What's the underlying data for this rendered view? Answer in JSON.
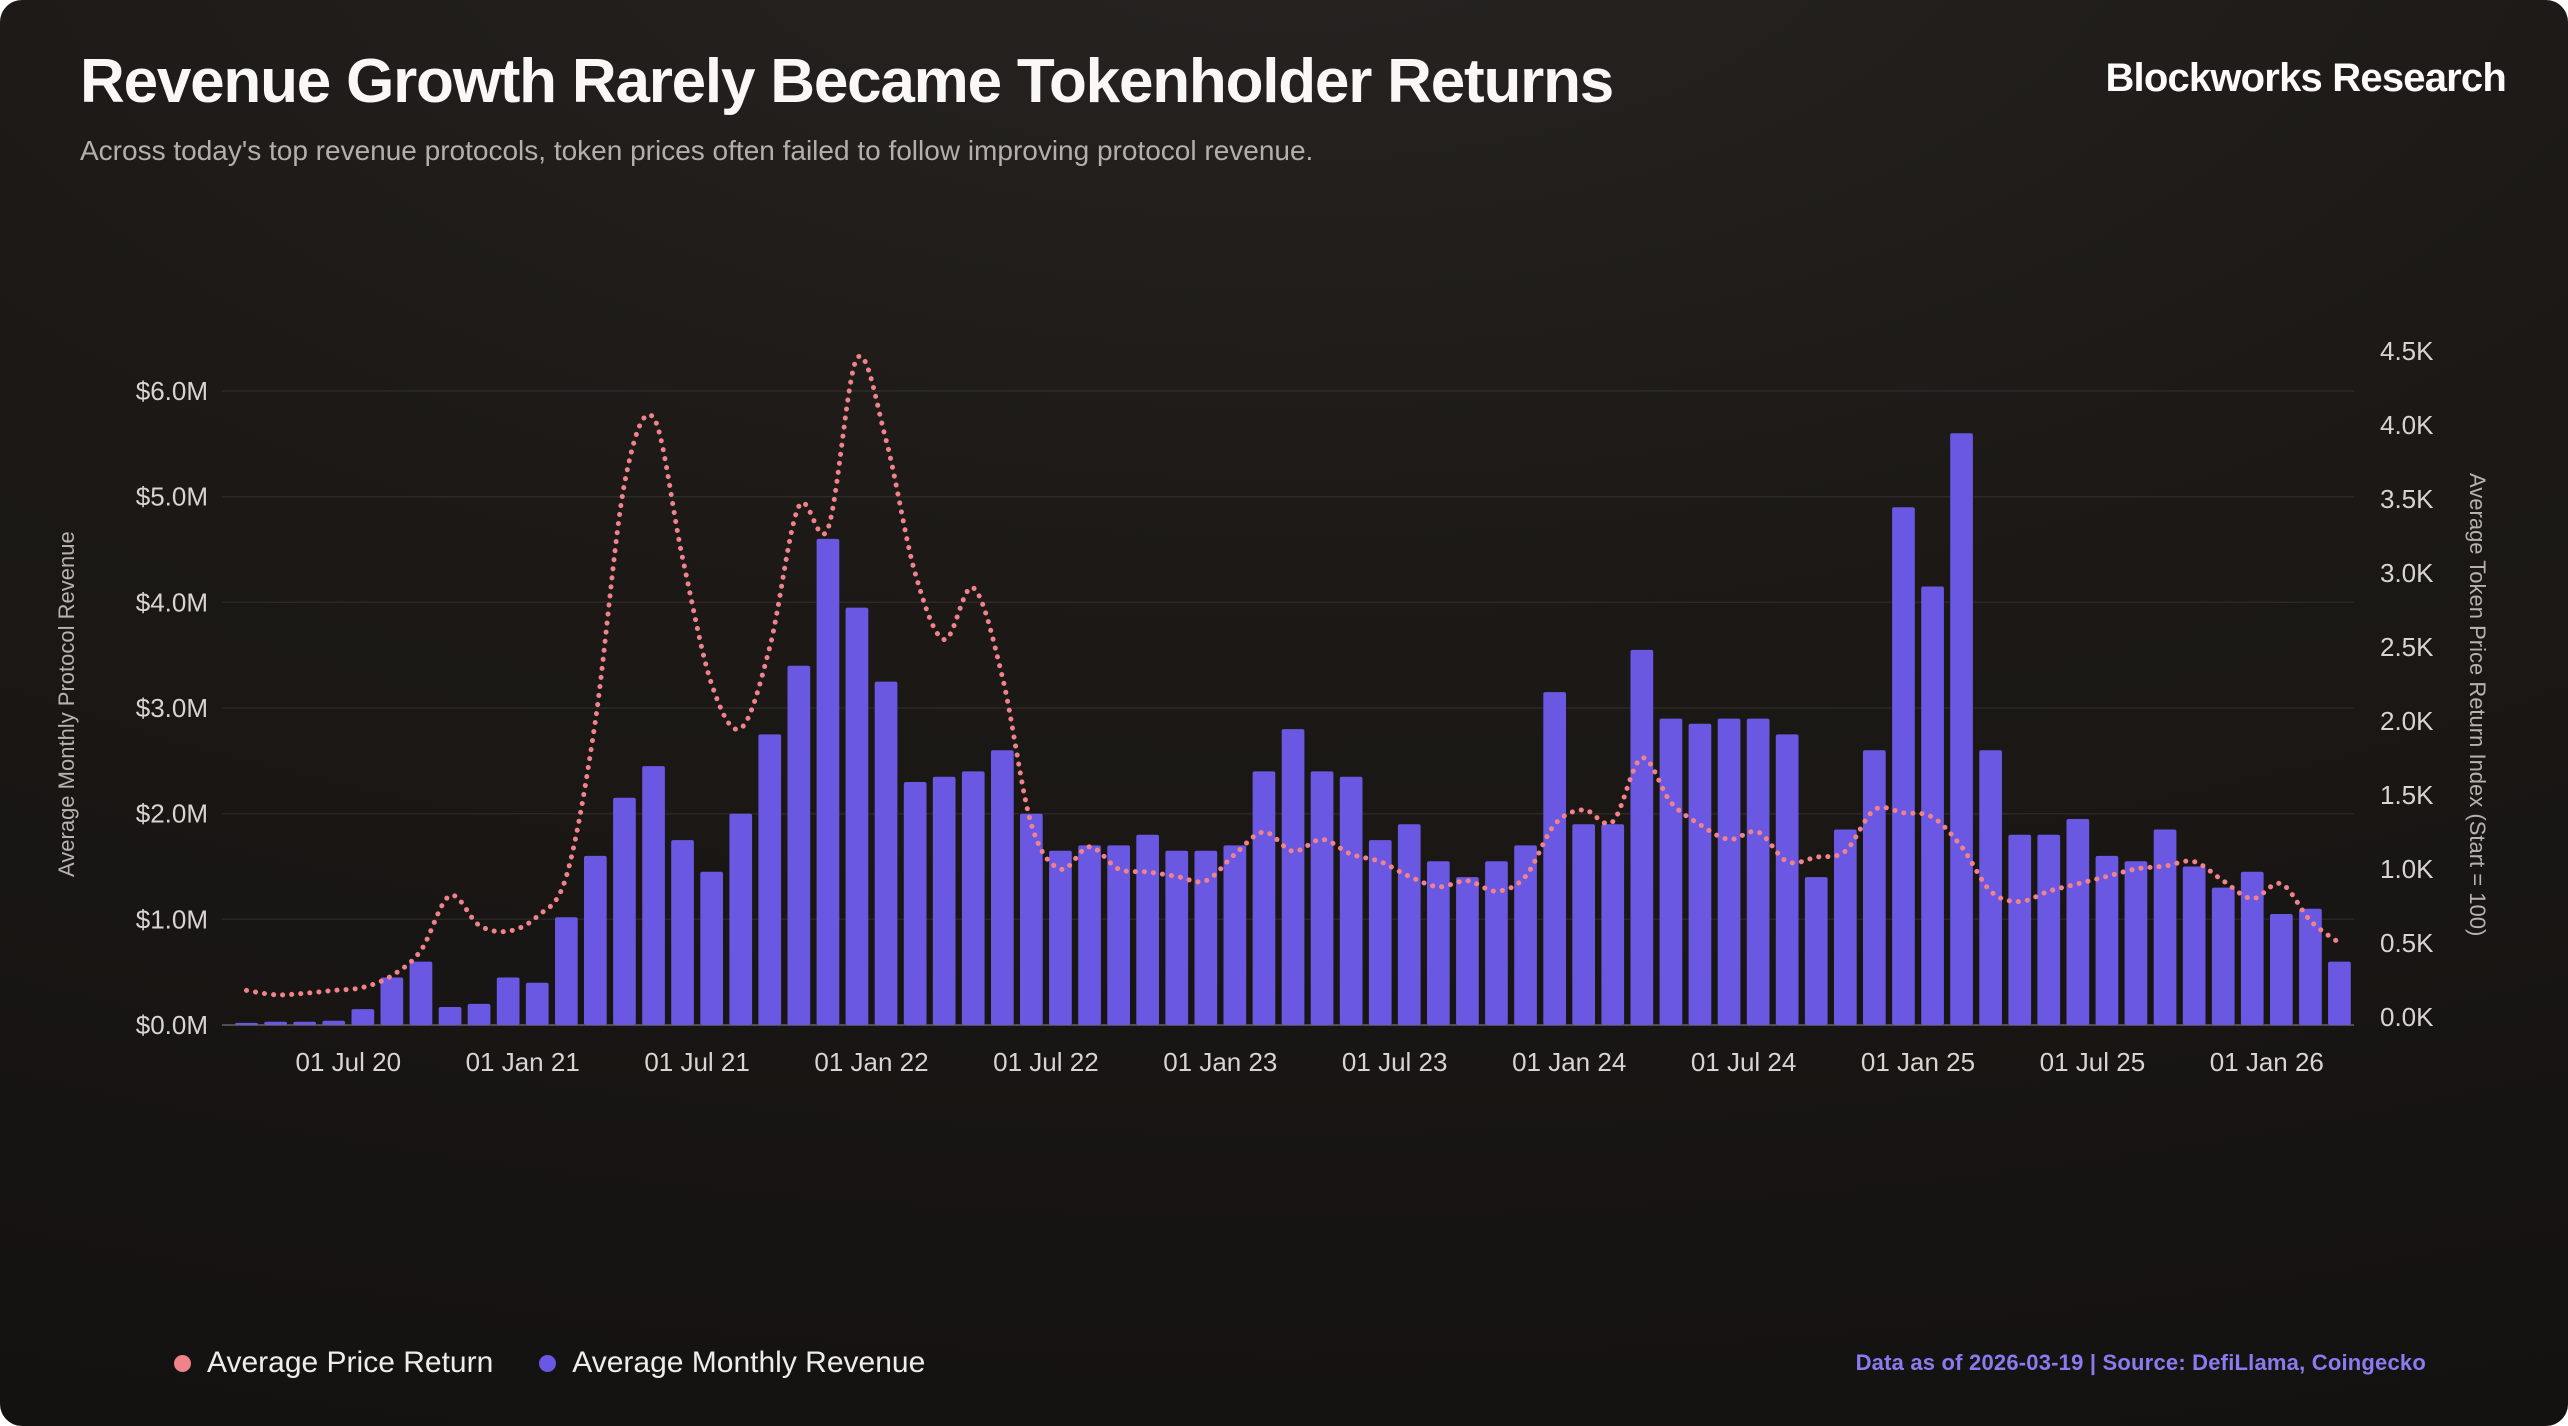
{
  "header": {
    "title": "Revenue Growth Rarely Became Tokenholder Returns",
    "subtitle": "Across today's top revenue protocols, token prices often failed to follow improving protocol revenue.",
    "logo": "Blockworks Research"
  },
  "footer": {
    "source": "Data as of 2026-03-19 | Source: DefiLlama, Coingecko"
  },
  "legend": [
    {
      "label": "Average Price Return",
      "color": "#f0838a"
    },
    {
      "label": "Average Monthly Revenue",
      "color": "#6a58e3"
    }
  ],
  "colors": {
    "background": "#1b1816",
    "bar": "#6a58e3",
    "line": "#f0838a",
    "source_text": "#8b7bf1"
  },
  "chart_data": {
    "type": "bar+line-dual-axis",
    "title": "Revenue Growth Rarely Became Tokenholder Returns",
    "grid": true,
    "legend_position": "bottom-left",
    "left_axis": {
      "title": "Average Monthly Protocol Revenue",
      "unit": "$M",
      "max": 6,
      "ticks": [
        {
          "value": 0,
          "label": "$0.0M"
        },
        {
          "value": 1,
          "label": "$1.0M"
        },
        {
          "value": 2,
          "label": "$2.0M"
        },
        {
          "value": 3,
          "label": "$3.0M"
        },
        {
          "value": 4,
          "label": "$4.0M"
        },
        {
          "value": 5,
          "label": "$5.0M"
        },
        {
          "value": 6,
          "label": "$6.0M"
        }
      ]
    },
    "right_axis": {
      "title": "Average Token Price Return Index (Start = 100)",
      "unit": "K",
      "max": 4.5,
      "ticks": [
        {
          "value": 0.0,
          "label": "0.0K"
        },
        {
          "value": 0.5,
          "label": "0.5K"
        },
        {
          "value": 1.0,
          "label": "1.0K"
        },
        {
          "value": 1.5,
          "label": "1.5K"
        },
        {
          "value": 2.0,
          "label": "2.0K"
        },
        {
          "value": 2.5,
          "label": "2.5K"
        },
        {
          "value": 3.0,
          "label": "3.0K"
        },
        {
          "value": 3.5,
          "label": "3.5K"
        },
        {
          "value": 4.0,
          "label": "4.0K"
        },
        {
          "value": 4.5,
          "label": "4.5K"
        }
      ]
    },
    "x": [
      "2020-03",
      "2020-04",
      "2020-05",
      "2020-06",
      "2020-07",
      "2020-08",
      "2020-09",
      "2020-10",
      "2020-11",
      "2020-12",
      "2021-01",
      "2021-02",
      "2021-03",
      "2021-04",
      "2021-05",
      "2021-06",
      "2021-07",
      "2021-08",
      "2021-09",
      "2021-10",
      "2021-11",
      "2021-12",
      "2022-01",
      "2022-02",
      "2022-03",
      "2022-04",
      "2022-05",
      "2022-06",
      "2022-07",
      "2022-08",
      "2022-09",
      "2022-10",
      "2022-11",
      "2022-12",
      "2023-01",
      "2023-02",
      "2023-03",
      "2023-04",
      "2023-05",
      "2023-06",
      "2023-07",
      "2023-08",
      "2023-09",
      "2023-10",
      "2023-11",
      "2023-12",
      "2024-01",
      "2024-02",
      "2024-03",
      "2024-04",
      "2024-05",
      "2024-06",
      "2024-07",
      "2024-08",
      "2024-09",
      "2024-10",
      "2024-11",
      "2024-12",
      "2025-01",
      "2025-02",
      "2025-03",
      "2025-04",
      "2025-05",
      "2025-06",
      "2025-07",
      "2025-08",
      "2025-09",
      "2025-10",
      "2025-11",
      "2025-12",
      "2026-01",
      "2026-02",
      "2026-03"
    ],
    "x_ticks": [
      {
        "index": 4,
        "label": "01 Jul 20"
      },
      {
        "index": 10,
        "label": "01 Jan 21"
      },
      {
        "index": 16,
        "label": "01 Jul 21"
      },
      {
        "index": 22,
        "label": "01 Jan 22"
      },
      {
        "index": 28,
        "label": "01 Jul 22"
      },
      {
        "index": 34,
        "label": "01 Jan 23"
      },
      {
        "index": 40,
        "label": "01 Jul 23"
      },
      {
        "index": 46,
        "label": "01 Jan 24"
      },
      {
        "index": 52,
        "label": "01 Jul 24"
      },
      {
        "index": 58,
        "label": "01 Jan 25"
      },
      {
        "index": 64,
        "label": "01 Jul 25"
      },
      {
        "index": 70,
        "label": "01 Jan 26"
      }
    ],
    "series": [
      {
        "name": "Average Monthly Revenue",
        "type": "bar",
        "axis": "left",
        "unit": "$M",
        "color": "#6a58e3",
        "values": [
          0.02,
          0.03,
          0.03,
          0.04,
          0.15,
          0.45,
          0.6,
          0.17,
          0.2,
          0.45,
          0.4,
          1.02,
          1.6,
          2.15,
          2.45,
          1.75,
          1.45,
          2.0,
          2.75,
          3.4,
          4.6,
          3.95,
          3.25,
          2.3,
          2.35,
          2.4,
          2.6,
          2.0,
          1.65,
          1.7,
          1.7,
          1.8,
          1.65,
          1.65,
          1.7,
          2.4,
          2.8,
          2.4,
          2.35,
          1.75,
          1.9,
          1.55,
          1.4,
          1.55,
          1.7,
          3.15,
          1.9,
          1.9,
          3.55,
          2.9,
          2.85,
          2.9,
          2.9,
          2.75,
          1.4,
          1.85,
          2.6,
          4.9,
          4.15,
          5.6,
          2.6,
          1.8,
          1.8,
          1.95,
          1.6,
          1.55,
          1.85,
          1.5,
          1.3,
          1.45,
          1.05,
          1.1,
          0.6
        ]
      },
      {
        "name": "Average Price Return",
        "type": "line",
        "style": "dotted",
        "axis": "right",
        "unit": "K (index, start = 100)",
        "color": "#f0838a",
        "values": [
          0.18,
          0.15,
          0.16,
          0.18,
          0.2,
          0.28,
          0.45,
          0.82,
          0.62,
          0.58,
          0.68,
          0.95,
          2.0,
          3.6,
          4.05,
          3.1,
          2.25,
          1.95,
          2.5,
          3.45,
          3.3,
          4.45,
          3.9,
          3.0,
          2.55,
          2.9,
          2.3,
          1.3,
          1.0,
          1.15,
          1.0,
          0.98,
          0.95,
          0.92,
          1.1,
          1.25,
          1.12,
          1.2,
          1.1,
          1.05,
          0.95,
          0.88,
          0.92,
          0.85,
          0.95,
          1.3,
          1.4,
          1.32,
          1.75,
          1.45,
          1.3,
          1.2,
          1.25,
          1.05,
          1.08,
          1.12,
          1.4,
          1.38,
          1.35,
          1.15,
          0.85,
          0.78,
          0.85,
          0.9,
          0.95,
          1.0,
          1.02,
          1.05,
          0.92,
          0.8,
          0.9,
          0.65,
          0.5
        ]
      }
    ]
  }
}
